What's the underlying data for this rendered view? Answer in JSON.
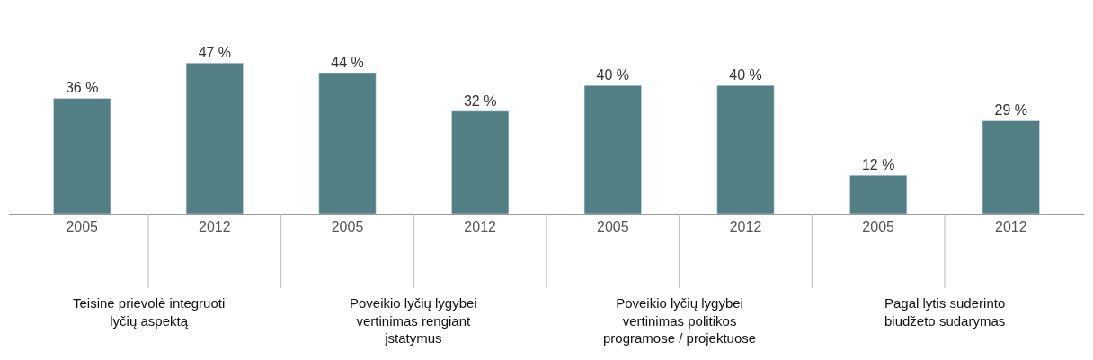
{
  "chart_data": {
    "type": "bar",
    "categories": [
      "2005",
      "2012",
      "2005",
      "2012",
      "2005",
      "2012",
      "2005",
      "2012"
    ],
    "values": [
      36,
      47,
      44,
      32,
      40,
      40,
      12,
      29
    ],
    "value_labels": [
      "36 %",
      "47 %",
      "44 %",
      "32 %",
      "40 %",
      "40 %",
      "12 %",
      "29 %"
    ],
    "color": "#527f84",
    "annotations": [
      "Teisinė prievolė integruoti\nlyčių aspektą",
      "Poveikio lyčių lygybei\nvertinimas rengiant\nįstatymus",
      "Poveikio lyčių lygybei\nvertinimas politikos\nprogramose / projektuose",
      "Pagal lytis suderinto\nbiudžeto sudarymas"
    ]
  }
}
